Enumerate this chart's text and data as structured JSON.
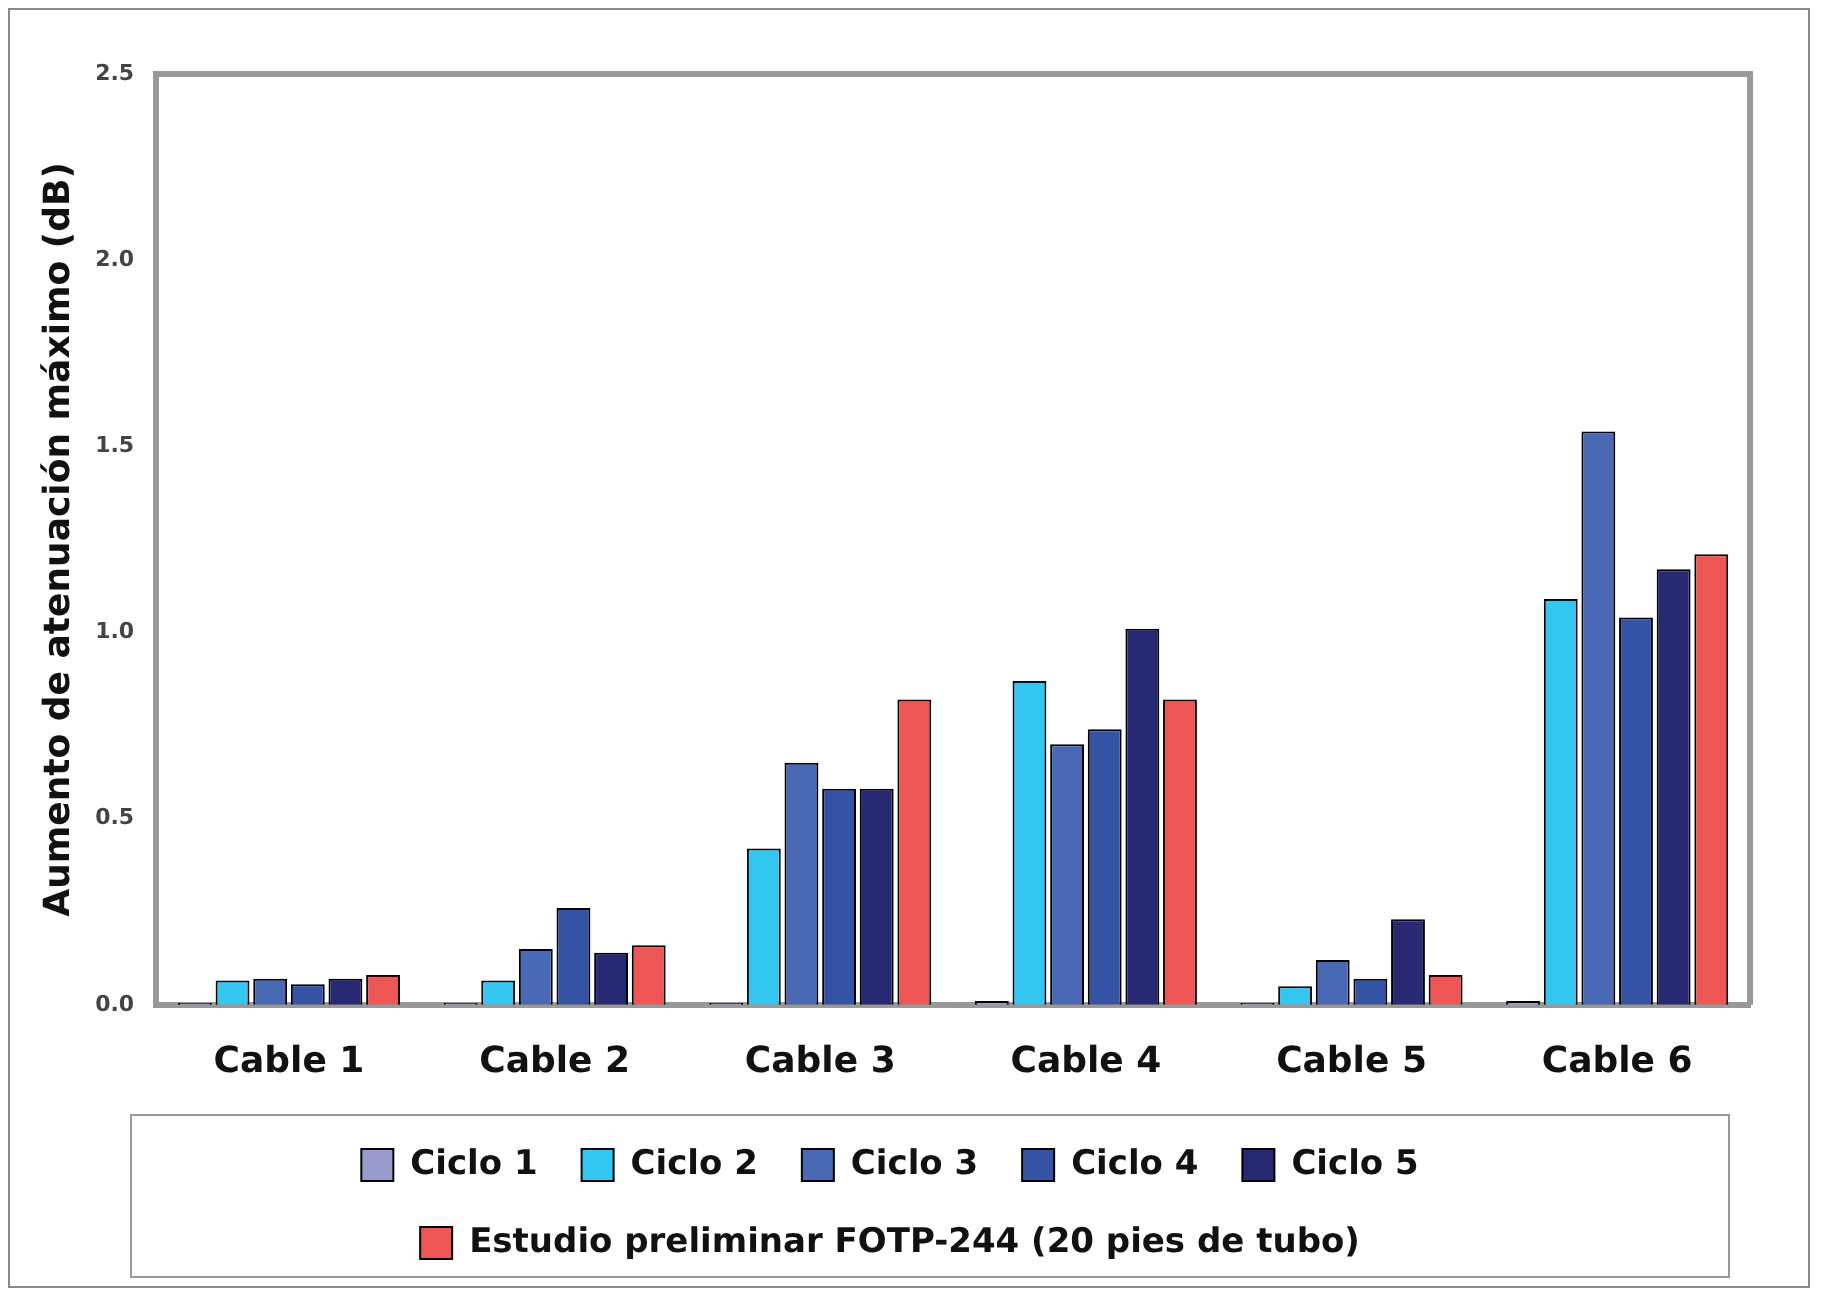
{
  "chart_data": {
    "type": "bar",
    "ylabel": "Aumento de atenuación máximo (dB)",
    "categories": [
      "Cable 1",
      "Cable 2",
      "Cable 3",
      "Cable 4",
      "Cable 5",
      "Cable 6"
    ],
    "series": [
      {
        "name": "Ciclo 1",
        "color": "#9999cc",
        "values": [
          0.005,
          0.005,
          0.005,
          0.01,
          0.005,
          0.01
        ]
      },
      {
        "name": "Ciclo 2",
        "color": "#33c6f0",
        "values": [
          0.065,
          0.065,
          0.42,
          0.87,
          0.05,
          1.09
        ]
      },
      {
        "name": "Ciclo 3",
        "color": "#4a69b5",
        "values": [
          0.07,
          0.15,
          0.65,
          0.7,
          0.12,
          1.54
        ]
      },
      {
        "name": "Ciclo 4",
        "color": "#3553a5",
        "values": [
          0.055,
          0.26,
          0.58,
          0.74,
          0.07,
          1.04
        ]
      },
      {
        "name": "Ciclo 5",
        "color": "#272a72",
        "values": [
          0.07,
          0.14,
          0.58,
          1.01,
          0.23,
          1.17
        ]
      },
      {
        "name": "Estudio preliminar FOTP-244 (20 pies de tubo)",
        "color": "#ee5555",
        "values": [
          0.08,
          0.16,
          0.82,
          0.82,
          0.08,
          1.21
        ]
      }
    ],
    "ylim": [
      0,
      2.5
    ],
    "yticks": [
      {
        "value": 0,
        "label": "0.0"
      },
      {
        "value": 0.5,
        "label": "0.5"
      },
      {
        "value": 1,
        "label": "1.0"
      },
      {
        "value": 1.5,
        "label": "1.5"
      },
      {
        "value": 2,
        "label": "2.0"
      },
      {
        "value": 2.5,
        "label": "2.5"
      }
    ],
    "grid": false,
    "legend": "bottom"
  }
}
